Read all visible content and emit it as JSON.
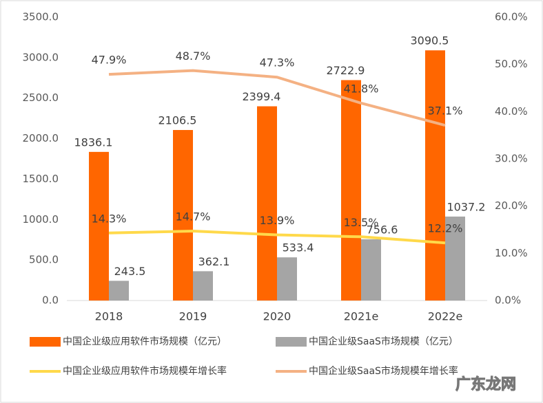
{
  "chart_data": {
    "type": "bar-line",
    "categories": [
      "2018",
      "2019",
      "2020",
      "2021e",
      "2022e"
    ],
    "series": [
      {
        "name": "中国企业级应用软件市场规模（亿元）",
        "type": "bar",
        "color": "#ff6600",
        "values": [
          1836.1,
          2106.5,
          2399.4,
          2722.9,
          3090.5
        ]
      },
      {
        "name": "中国企业级SaaS市场规模（亿元）",
        "type": "bar",
        "color": "#a5a5a5",
        "values": [
          243.5,
          362.1,
          533.4,
          756.6,
          1037.2
        ]
      },
      {
        "name": "中国企业级应用软件市场规模年增长率",
        "type": "line",
        "axis": "y2",
        "color": "#ffd94a",
        "values": [
          14.3,
          14.7,
          13.9,
          13.5,
          12.2
        ],
        "value_labels": [
          "14.3%",
          "14.7%",
          "13.9%",
          "13.5%",
          "12.2%"
        ]
      },
      {
        "name": "中国企业级SaaS市场规模年增长率",
        "type": "line",
        "axis": "y2",
        "color": "#f4b183",
        "values": [
          47.9,
          48.7,
          47.3,
          41.8,
          37.1
        ],
        "value_labels": [
          "47.9%",
          "48.7%",
          "47.3%",
          "41.8%",
          "37.1%"
        ]
      }
    ],
    "ylim": [
      0,
      3500
    ],
    "yticks": [
      {
        "value": 0,
        "label": "0.0"
      },
      {
        "value": 500,
        "label": "500.0"
      },
      {
        "value": 1000,
        "label": "1000.0"
      },
      {
        "value": 1500,
        "label": "1500.0"
      },
      {
        "value": 2000,
        "label": "2000.0"
      },
      {
        "value": 2500,
        "label": "2500.0"
      },
      {
        "value": 3000,
        "label": "3000.0"
      },
      {
        "value": 3500,
        "label": "3500.0"
      }
    ],
    "y2lim": [
      0,
      60
    ],
    "y2ticks": [
      {
        "value": 0,
        "label": "0.0%"
      },
      {
        "value": 10,
        "label": "10.0%"
      },
      {
        "value": 20,
        "label": "20.0%"
      },
      {
        "value": 30,
        "label": "30.0%"
      },
      {
        "value": 40,
        "label": "40.0%"
      },
      {
        "value": 50,
        "label": "50.0%"
      },
      {
        "value": 60,
        "label": "60.0%"
      }
    ],
    "grid": false,
    "watermark": "广东龙网"
  }
}
